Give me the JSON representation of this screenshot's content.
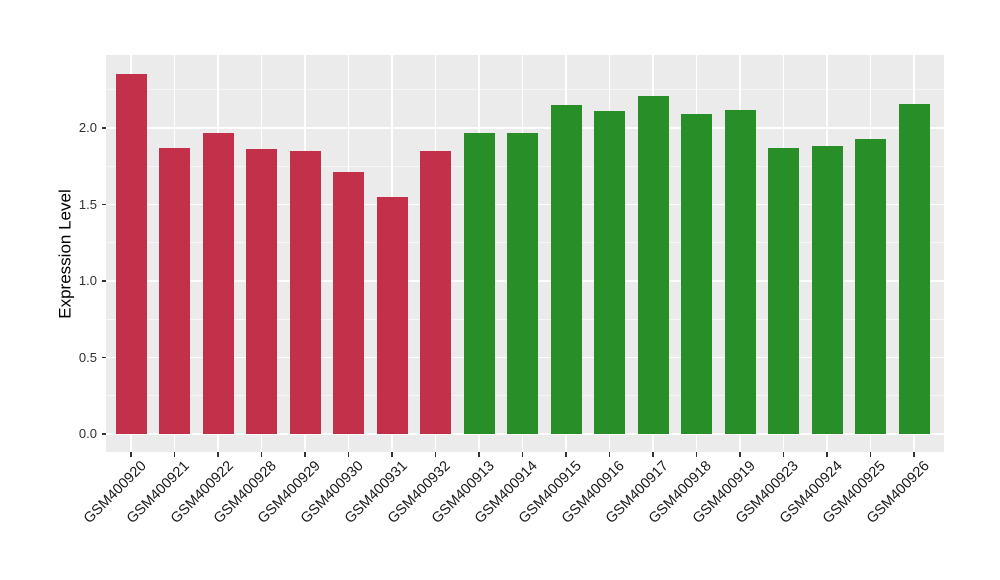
{
  "chart_data": {
    "type": "bar",
    "title": "",
    "xlabel": "",
    "ylabel": "Expression Level",
    "ylim": [
      0,
      2.47
    ],
    "grid": true,
    "legend_position": "none",
    "panel_background": "#EBEBEB",
    "grid_color": "#FFFFFF",
    "yticks": [
      {
        "value": 0.0,
        "label": "0.0"
      },
      {
        "value": 0.5,
        "label": "0.5"
      },
      {
        "value": 1.0,
        "label": "1.0"
      },
      {
        "value": 1.5,
        "label": "1.5"
      },
      {
        "value": 2.0,
        "label": "2.0"
      }
    ],
    "minor_yticks": [
      0.25,
      0.75,
      1.25,
      1.75,
      2.25
    ],
    "categories": [
      "GSM400920",
      "GSM400921",
      "GSM400922",
      "GSM400928",
      "GSM400929",
      "GSM400930",
      "GSM400931",
      "GSM400932",
      "GSM400913",
      "GSM400914",
      "GSM400915",
      "GSM400916",
      "GSM400917",
      "GSM400918",
      "GSM400919",
      "GSM400923",
      "GSM400924",
      "GSM400925",
      "GSM400926"
    ],
    "values": [
      2.35,
      1.87,
      1.97,
      1.86,
      1.85,
      1.71,
      1.55,
      1.85,
      1.97,
      1.97,
      2.15,
      2.11,
      2.21,
      2.09,
      2.12,
      1.87,
      1.88,
      1.93,
      2.16
    ],
    "bar_groups": [
      "red",
      "red",
      "red",
      "red",
      "red",
      "red",
      "red",
      "red",
      "green",
      "green",
      "green",
      "green",
      "green",
      "green",
      "green",
      "green",
      "green",
      "green",
      "green"
    ],
    "group_colors": {
      "red": "#C23149",
      "green": "#288E28"
    }
  }
}
